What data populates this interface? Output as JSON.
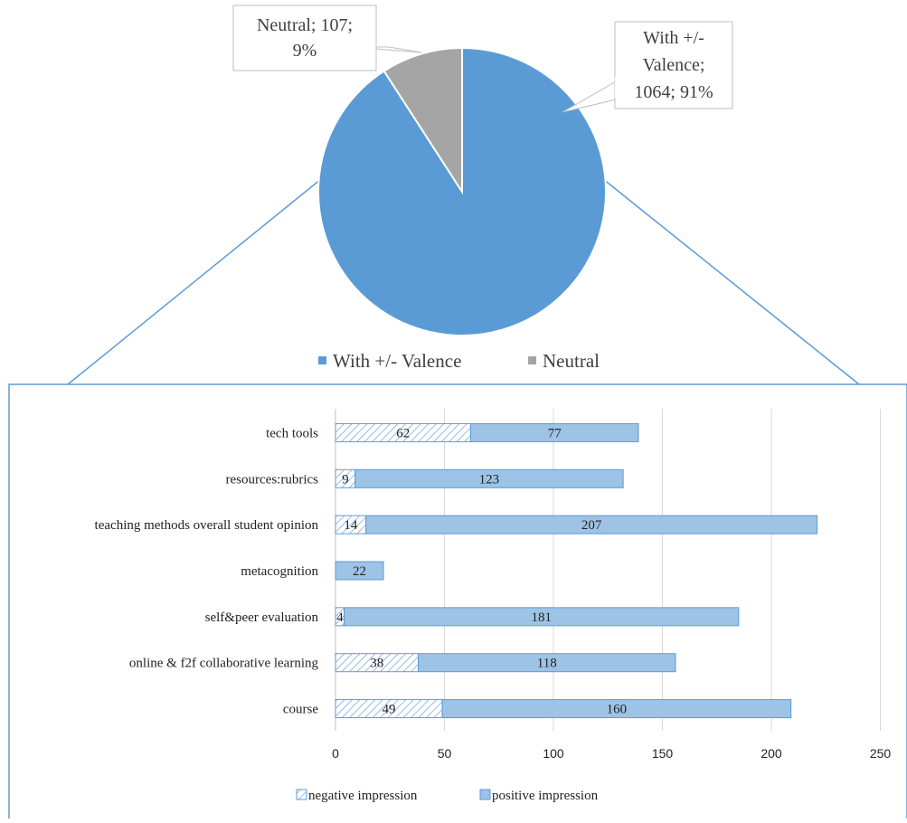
{
  "chart_data": [
    {
      "type": "pie",
      "title": "",
      "slices": [
        {
          "name": "With +/- Valence",
          "value": 1064,
          "percent": "91%",
          "color": "#5b9bd5",
          "label_lines": [
            "With +/-",
            "Valence;",
            "1064; 91%"
          ]
        },
        {
          "name": "Neutral",
          "value": 107,
          "percent": "9%",
          "color": "#a5a5a5",
          "label_lines": [
            "Neutral; 107;",
            "9%"
          ]
        }
      ],
      "legend": {
        "position": "bottom",
        "entries": [
          "With +/- Valence",
          "Neutral"
        ]
      }
    },
    {
      "type": "bar",
      "orientation": "horizontal",
      "stacked": true,
      "title": "",
      "xlabel": "",
      "ylabel": "",
      "categories": [
        "tech tools",
        "resources:rubrics",
        "teaching methods overall student opinion",
        "metacognition",
        "self&peer evaluation",
        "online & f2f collaborative learning",
        "course"
      ],
      "series": [
        {
          "name": "negative impression",
          "values": [
            62,
            9,
            14,
            0,
            4,
            38,
            49
          ],
          "labels": [
            "62",
            "9",
            "14",
            "",
            "4",
            "38",
            "49"
          ],
          "color": "#9dc3e6",
          "pattern": "hatch"
        },
        {
          "name": "positive impression",
          "values": [
            77,
            123,
            207,
            22,
            181,
            118,
            160
          ],
          "labels": [
            "77",
            "123",
            "207",
            "22",
            "181",
            "118",
            "160"
          ],
          "color": "#9dc3e6",
          "pattern": "solid"
        }
      ],
      "xlim": [
        0,
        250
      ],
      "xticks": [
        0,
        50,
        100,
        150,
        200,
        250
      ],
      "xtick_labels": [
        "0",
        "50",
        "100",
        "150",
        "200",
        "250"
      ],
      "grid": true,
      "legend": {
        "position": "bottom",
        "entries": [
          "negative impression",
          "positive impression"
        ]
      }
    }
  ]
}
